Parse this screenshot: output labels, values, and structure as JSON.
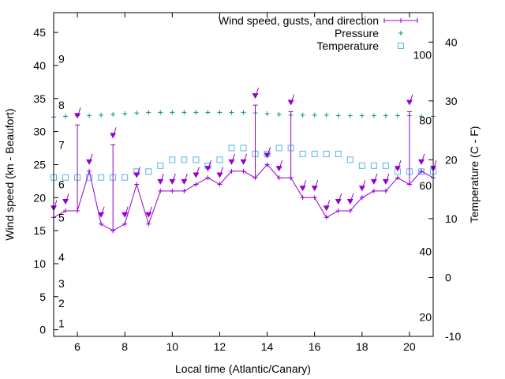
{
  "chart_data": {
    "type": "line",
    "xlabel": "Local time (Atlantic/Canary)",
    "ylabel_left": "Wind speed (kn - Beaufort)",
    "ylabel_right": "Temperature (C - F)",
    "xlim": [
      5,
      21
    ],
    "ylim_left": [
      -1,
      48
    ],
    "ylim_right": [
      -10,
      45
    ],
    "grid": false,
    "legend_position": "top-right",
    "x_ticks": [
      6,
      8,
      10,
      12,
      14,
      16,
      18,
      20
    ],
    "y_left_ticks": [
      0,
      5,
      10,
      15,
      20,
      25,
      30,
      35,
      40,
      45
    ],
    "y_right_ticks": [
      -10,
      0,
      10,
      20,
      30,
      40
    ],
    "beaufort_labels": [
      {
        "label": "1",
        "kn": 1
      },
      {
        "label": "2",
        "kn": 4
      },
      {
        "label": "3",
        "kn": 7
      },
      {
        "label": "4",
        "kn": 11
      },
      {
        "label": "5",
        "kn": 17
      },
      {
        "label": "6",
        "kn": 22
      },
      {
        "label": "7",
        "kn": 28
      },
      {
        "label": "8",
        "kn": 34
      },
      {
        "label": "9",
        "kn": 41
      }
    ],
    "fahrenheit_labels": [
      {
        "label": "20",
        "celsius": -6.7
      },
      {
        "label": "40",
        "celsius": 4.4
      },
      {
        "label": "60",
        "celsius": 15.6
      },
      {
        "label": "80",
        "celsius": 26.7
      },
      {
        "label": "100",
        "celsius": 37.8
      }
    ],
    "legend": [
      {
        "label": "Wind speed, gusts, and direction",
        "series": "wind",
        "color": "#9400d3"
      },
      {
        "label": "Pressure",
        "series": "pressure",
        "color": "#009e73"
      },
      {
        "label": "Temperature",
        "series": "temperature",
        "color": "#56b4e9"
      }
    ],
    "wind": {
      "color": "#9400d3",
      "x": [
        5,
        5.5,
        6,
        6.5,
        7,
        7.5,
        8,
        8.5,
        9,
        9.5,
        10,
        10.5,
        11,
        11.5,
        12,
        12.5,
        13,
        13.5,
        14,
        14.5,
        15,
        15.5,
        16,
        16.5,
        17,
        17.5,
        18,
        18.5,
        19,
        19.5,
        20,
        20.5,
        21
      ],
      "speed": [
        17,
        18,
        18,
        24,
        16,
        15,
        16,
        22,
        16,
        21,
        21,
        21,
        22,
        23,
        22,
        24,
        24,
        23,
        25,
        23,
        23,
        20,
        20,
        17,
        18,
        18,
        20,
        21,
        21,
        23,
        22,
        24,
        23
      ],
      "gust": [
        17,
        18,
        31,
        24,
        16,
        28,
        16,
        22,
        16,
        21,
        21,
        21,
        22,
        23,
        22,
        24,
        24,
        34,
        25,
        23,
        33,
        20,
        20,
        17,
        18,
        18,
        20,
        21,
        21,
        23,
        33,
        24,
        23
      ]
    },
    "pressure": {
      "color": "#009e73",
      "x": [
        5,
        5.5,
        6,
        6.5,
        7,
        7.5,
        8,
        8.5,
        9,
        9.5,
        10,
        10.5,
        11,
        11.5,
        12,
        12.5,
        13,
        13.5,
        14,
        14.5,
        15,
        15.5,
        16,
        16.5,
        17,
        17.5,
        18,
        18.5,
        19,
        19.5,
        20,
        20.5,
        21
      ],
      "y_left": [
        32.2,
        32.3,
        32.4,
        32.4,
        32.5,
        32.6,
        32.7,
        32.8,
        32.9,
        32.9,
        32.9,
        32.9,
        32.9,
        32.9,
        32.9,
        32.9,
        32.9,
        32.8,
        32.7,
        32.6,
        32.5,
        32.5,
        32.5,
        32.5,
        32.4,
        32.4,
        32.4,
        32.4,
        32.4,
        32.4,
        32.4,
        32.3,
        32.3
      ]
    },
    "temperature": {
      "color": "#56b4e9",
      "x": [
        5,
        5.5,
        6,
        6.5,
        7,
        7.5,
        8,
        8.5,
        9,
        9.5,
        10,
        10.5,
        11,
        11.5,
        12,
        12.5,
        13,
        13.5,
        14,
        14.5,
        15,
        15.5,
        16,
        16.5,
        17,
        17.5,
        18,
        18.5,
        19,
        19.5,
        20,
        20.5,
        21
      ],
      "celsius": [
        17,
        17,
        17,
        17,
        17,
        17,
        17,
        18,
        18,
        19,
        20,
        20,
        20,
        19,
        20,
        22,
        22,
        21,
        21,
        22,
        22,
        21,
        21,
        21,
        21,
        20,
        19,
        19,
        19,
        18,
        18,
        18,
        18
      ]
    }
  }
}
